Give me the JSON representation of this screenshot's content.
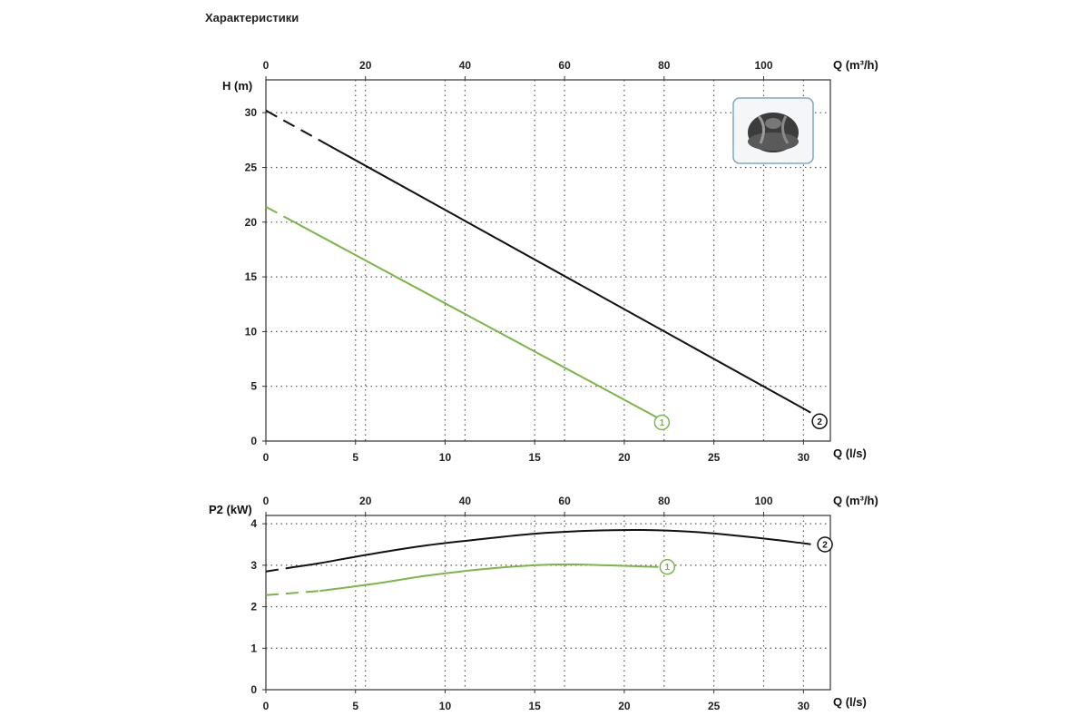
{
  "page": {
    "heading": "Характеристики"
  },
  "chart_data": [
    {
      "type": "line",
      "ylabel": "H (m)",
      "xlabel": "Q (l/s)",
      "x2label": "Q (m³/h)",
      "xlim": [
        0,
        31.5
      ],
      "ylim": [
        0,
        33
      ],
      "x_ticks": [
        "0",
        "5",
        "10",
        "15",
        "20",
        "25",
        "30"
      ],
      "x2_ticks": [
        "0",
        "20",
        "40",
        "60",
        "80",
        "100"
      ],
      "y_ticks": [
        "0",
        "5",
        "10",
        "15",
        "20",
        "25",
        "30"
      ],
      "grid": true,
      "inset_image": "impeller-photo",
      "series": [
        {
          "badge": "1",
          "color": "#7ab648",
          "dashed_until": 1.6,
          "x": [
            0,
            21.9
          ],
          "y": [
            21.4,
            2.1
          ],
          "label_at": [
            22.1,
            1.7
          ]
        },
        {
          "badge": "2",
          "color": "#111111",
          "dashed_until": 3.5,
          "x": [
            0,
            30.4
          ],
          "y": [
            30.2,
            2.6
          ],
          "label_at": [
            30.9,
            1.8
          ]
        }
      ]
    },
    {
      "type": "line",
      "ylabel": "P2 (kW)",
      "xlabel": "Q (l/s)",
      "x2label": "Q (m³/h)",
      "xlim": [
        0,
        31.5
      ],
      "ylim": [
        0,
        4.2
      ],
      "x_ticks": [
        "0",
        "5",
        "10",
        "15",
        "20",
        "25",
        "30"
      ],
      "x2_ticks": [
        "0",
        "20",
        "40",
        "60",
        "80",
        "100"
      ],
      "y_ticks": [
        "0",
        "1",
        "2",
        "3",
        "4"
      ],
      "grid": true,
      "series": [
        {
          "badge": "1",
          "color": "#7ab648",
          "dashed_until": 3.0,
          "x": [
            0,
            3,
            6,
            9,
            12,
            15,
            17,
            19,
            21,
            21.9
          ],
          "y": [
            2.28,
            2.38,
            2.55,
            2.75,
            2.9,
            3.0,
            3.02,
            3.0,
            2.97,
            2.96
          ],
          "label_at": [
            22.4,
            2.96
          ]
        },
        {
          "badge": "2",
          "color": "#111111",
          "dashed_until": 1.6,
          "x": [
            0,
            3,
            6,
            9,
            12,
            15,
            18,
            21,
            24,
            27,
            30,
            30.4
          ],
          "y": [
            2.85,
            3.05,
            3.28,
            3.48,
            3.63,
            3.76,
            3.83,
            3.85,
            3.8,
            3.68,
            3.53,
            3.5
          ],
          "label_at": [
            31.2,
            3.5
          ]
        }
      ]
    }
  ]
}
